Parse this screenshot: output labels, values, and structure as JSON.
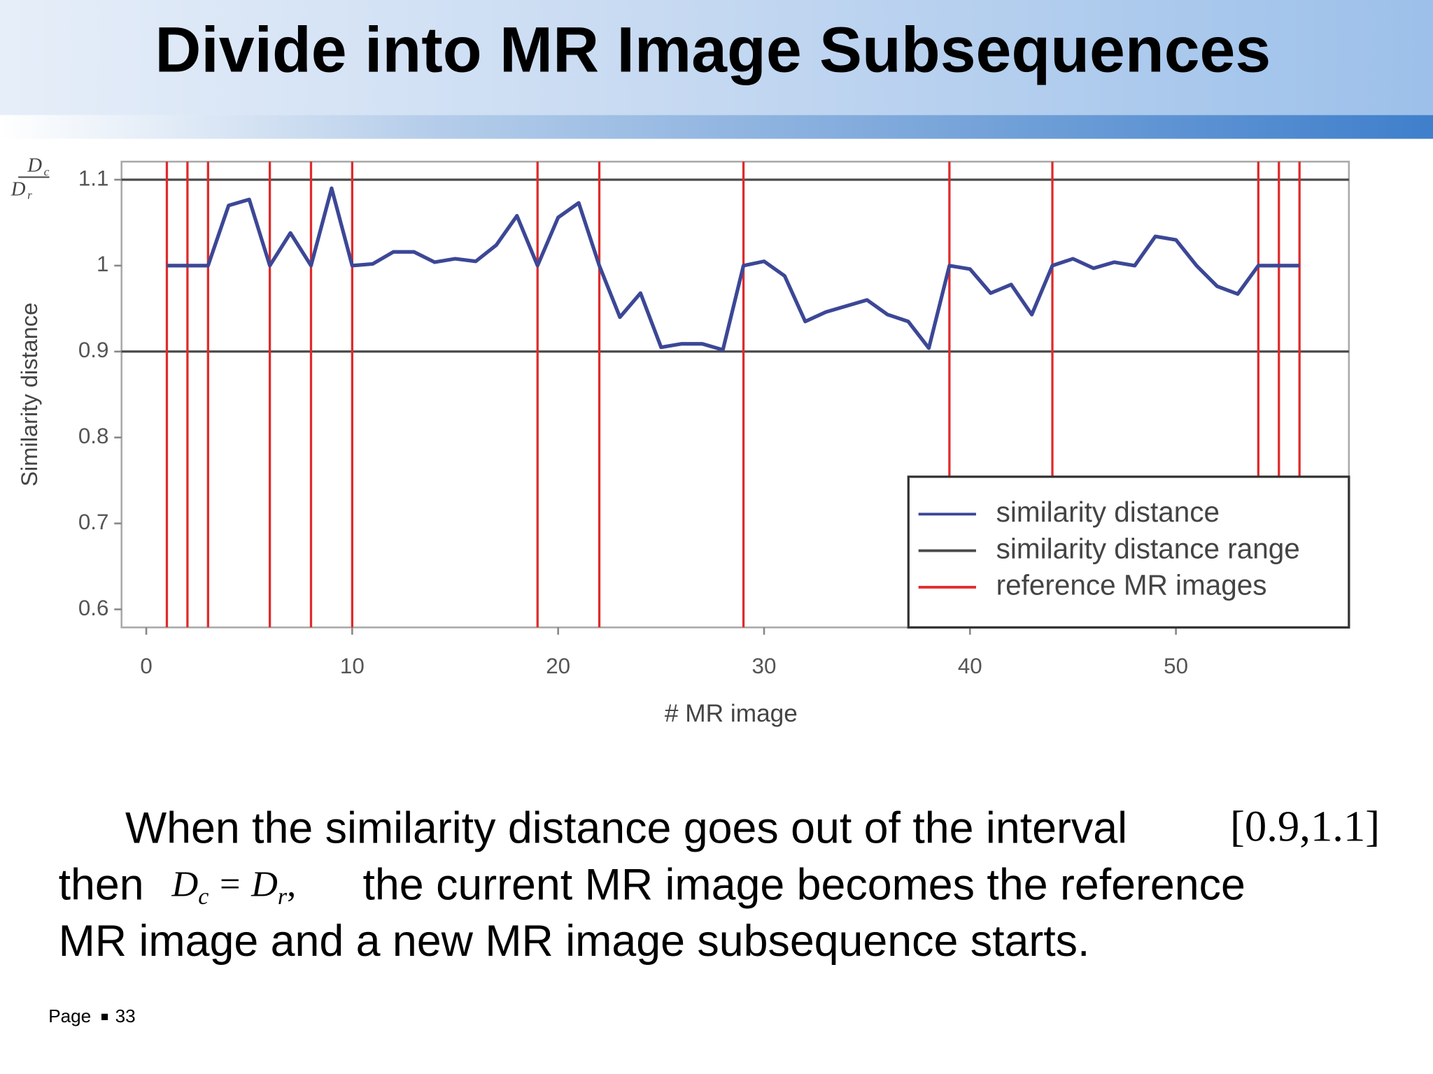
{
  "slide": {
    "title": "Divide into MR Image Subsequences"
  },
  "chart_data": {
    "type": "line",
    "y_label": "Similarity distance",
    "y_label_fraction": {
      "numerator": "D",
      "numerator_sub": "c",
      "denominator": "D",
      "denominator_sub": "r"
    },
    "x_label": "# MR image",
    "x": [
      1,
      2,
      3,
      4,
      5,
      6,
      7,
      8,
      9,
      10,
      11,
      12,
      13,
      14,
      15,
      16,
      17,
      18,
      19,
      20,
      21,
      22,
      23,
      24,
      25,
      26,
      27,
      28,
      29,
      30,
      31,
      32,
      33,
      34,
      35,
      36,
      37,
      38,
      39,
      40,
      41,
      42,
      43,
      44,
      45,
      46,
      47,
      48,
      49,
      50,
      51,
      52,
      53,
      54,
      55,
      56
    ],
    "series": [
      {
        "name": "similarity distance",
        "color": "#3c4796",
        "values": [
          1.0,
          1.0,
          1.0,
          1.07,
          1.077,
          1.0,
          1.038,
          1.0,
          1.09,
          1.0,
          1.002,
          1.016,
          1.016,
          1.004,
          1.008,
          1.005,
          1.024,
          1.058,
          1.0,
          1.056,
          1.073,
          1.0,
          0.94,
          0.968,
          0.905,
          0.909,
          0.909,
          0.902,
          1.0,
          1.005,
          0.988,
          0.935,
          0.946,
          0.953,
          0.96,
          0.943,
          0.935,
          0.904,
          1.0,
          0.996,
          0.968,
          0.978,
          0.943,
          1.0,
          1.008,
          0.997,
          1.004,
          1.0,
          1.034,
          1.03,
          1.0,
          0.976,
          0.967,
          1.0,
          1.0,
          1.0
        ]
      }
    ],
    "range": {
      "name": "similarity distance range",
      "color": "#4a4a4a",
      "values": [
        0.9,
        1.1
      ]
    },
    "references": {
      "name": "reference MR images",
      "color": "#e02a2a",
      "x": [
        1,
        2,
        3,
        6,
        8,
        10,
        19,
        22,
        29,
        39,
        44,
        54,
        55,
        56
      ]
    },
    "xlim": [
      -1.2,
      58.4
    ],
    "ylim": [
      0.579,
      1.121
    ],
    "xticks": [
      0,
      10,
      20,
      30,
      40,
      50
    ],
    "yticks": [
      0.6,
      0.7,
      0.8,
      0.9,
      1,
      1.1
    ],
    "legend": "lower right",
    "grid": false
  },
  "body": {
    "line1": "When the similarity distance goes out of the interval",
    "interval": "[0.9,1.1]",
    "line2_start": "then",
    "equation": {
      "lhs": "D",
      "lhs_sub": "c",
      "op": "=",
      "rhs": "D",
      "rhs_sub": "r",
      "punct": ","
    },
    "line2_end": "the current MR image becomes the reference",
    "line3": "MR image and a new MR image subsequence starts."
  },
  "footer": {
    "page_label": "Page",
    "page_number": 33
  }
}
